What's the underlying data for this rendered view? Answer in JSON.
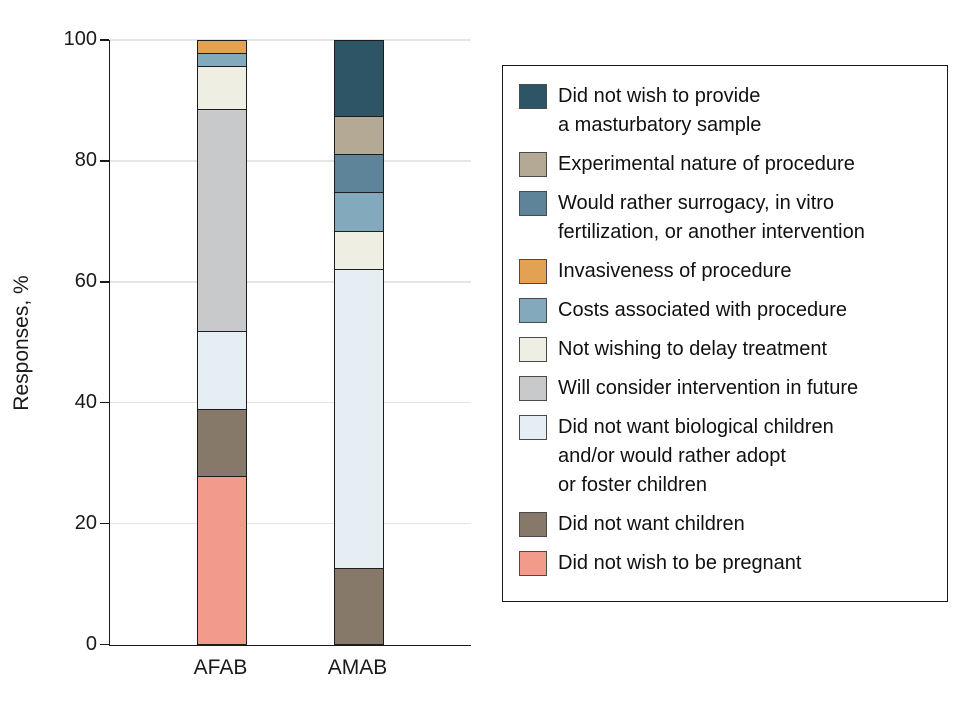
{
  "chart_data": {
    "type": "stacked-bar",
    "title": "",
    "ylabel": "Responses, %",
    "xlabel": "",
    "ylim": [
      0,
      100
    ],
    "yticks": [
      0,
      20,
      40,
      60,
      80,
      100
    ],
    "grid": true,
    "legend_position": "right",
    "categories": [
      "AFAB",
      "AMAB"
    ],
    "legend": [
      {
        "id": "masturbatory",
        "label": "Did not wish to provide\na masturbatory sample",
        "color": "#2e5565"
      },
      {
        "id": "experimental",
        "label": "Experimental nature of procedure",
        "color": "#b4a994"
      },
      {
        "id": "surrogacy",
        "label": "Would rather surrogacy, in vitro\nfertilization, or another intervention",
        "color": "#5e8499"
      },
      {
        "id": "invasiveness",
        "label": "Invasiveness of procedure",
        "color": "#e3a253"
      },
      {
        "id": "costs",
        "label": "Costs associated with procedure",
        "color": "#83a9bc"
      },
      {
        "id": "delay",
        "label": "Not wishing to delay treatment",
        "color": "#efeee3"
      },
      {
        "id": "future",
        "label": "Will consider intervention in future",
        "color": "#c8c9cb"
      },
      {
        "id": "biological",
        "label": "Did not want biological children\nand/or would rather adopt\nor foster children",
        "color": "#e5eef3"
      },
      {
        "id": "children",
        "label": "Did not want children",
        "color": "#86796a"
      },
      {
        "id": "pregnant",
        "label": "Did not wish to be pregnant",
        "color": "#f29b8a"
      }
    ],
    "series": [
      {
        "category": "AFAB",
        "segments_top_to_bottom": [
          {
            "id": "invasiveness",
            "value": 2
          },
          {
            "id": "costs",
            "value": 2
          },
          {
            "id": "delay",
            "value": 7
          },
          {
            "id": "future",
            "value": 37
          },
          {
            "id": "biological",
            "value": 13
          },
          {
            "id": "children",
            "value": 11
          },
          {
            "id": "pregnant",
            "value": 28
          }
        ]
      },
      {
        "category": "AMAB",
        "segments_top_to_bottom": [
          {
            "id": "masturbatory",
            "value": 12.5
          },
          {
            "id": "experimental",
            "value": 6.25
          },
          {
            "id": "surrogacy",
            "value": 6.25
          },
          {
            "id": "costs",
            "value": 6.25
          },
          {
            "id": "delay",
            "value": 6.25
          },
          {
            "id": "biological",
            "value": 50
          },
          {
            "id": "children",
            "value": 12.5
          }
        ]
      }
    ]
  },
  "colors": {
    "axis": "#1a1a1a",
    "gridline": "#e5e5e5",
    "segment_border": "#1d1d1d",
    "legend_border": "#1a1a1a",
    "text": "#1a1a1a"
  }
}
